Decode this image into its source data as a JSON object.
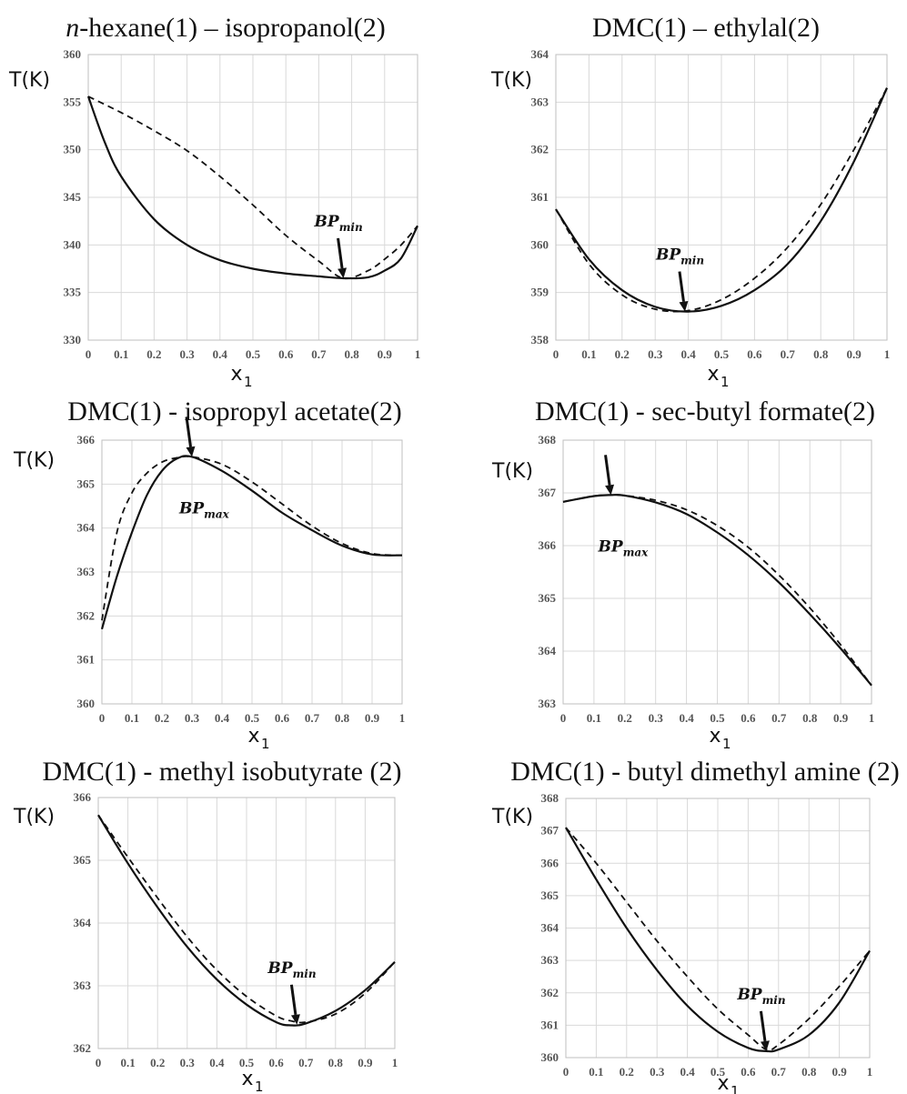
{
  "chart_data": [
    {
      "type": "line",
      "title": "n-hexane(1) – isopropanol(2)",
      "title_parts": [
        "n",
        "-hexane(1) – isopropanol(2)"
      ],
      "ylabel": "T(K)",
      "xlabel": "x",
      "xlabel_sub": "1",
      "xlim": [
        0,
        1
      ],
      "ylim": [
        330,
        360
      ],
      "xticks": [
        "0",
        "0.1",
        "0.2",
        "0.3",
        "0.4",
        "0.5",
        "0.6",
        "0.7",
        "0.8",
        "0.9",
        "1"
      ],
      "yticks": [
        "330",
        "335",
        "340",
        "345",
        "350",
        "355",
        "360"
      ],
      "grid": true,
      "annotation": {
        "text": "BP",
        "sub": "min",
        "x": 0.775,
        "y": 336.5
      },
      "series": [
        {
          "style": "solid",
          "x": [
            0,
            0.05,
            0.1,
            0.2,
            0.3,
            0.4,
            0.5,
            0.6,
            0.7,
            0.775,
            0.85,
            0.9,
            0.95,
            1
          ],
          "y": [
            355.6,
            350.8,
            347.2,
            342.7,
            340.0,
            338.4,
            337.5,
            337.0,
            336.7,
            336.5,
            336.6,
            337.3,
            338.6,
            342.0
          ]
        },
        {
          "style": "dashed",
          "x": [
            0,
            0.1,
            0.2,
            0.3,
            0.4,
            0.5,
            0.6,
            0.7,
            0.775,
            0.85,
            0.9,
            0.95,
            1
          ],
          "y": [
            355.6,
            353.9,
            352.0,
            349.9,
            347.2,
            344.2,
            341.0,
            338.3,
            336.5,
            337.3,
            338.5,
            340.0,
            342.0
          ]
        }
      ]
    },
    {
      "type": "line",
      "title": "DMC(1) – ethylal(2)",
      "ylabel": "T(K)",
      "xlabel": "x",
      "xlabel_sub": "1",
      "xlim": [
        0,
        1
      ],
      "ylim": [
        358,
        364
      ],
      "xticks": [
        "0",
        "0.1",
        "0.2",
        "0.3",
        "0.4",
        "0.5",
        "0.6",
        "0.7",
        "0.8",
        "0.9",
        "1"
      ],
      "yticks": [
        "358",
        "359",
        "360",
        "361",
        "362",
        "363",
        "364"
      ],
      "grid": true,
      "annotation": {
        "text": "BP",
        "sub": "min",
        "x": 0.39,
        "y": 358.6
      },
      "series": [
        {
          "style": "solid",
          "x": [
            0,
            0.1,
            0.2,
            0.3,
            0.4,
            0.5,
            0.6,
            0.7,
            0.8,
            0.9,
            1
          ],
          "y": [
            360.75,
            359.7,
            359.05,
            358.7,
            358.6,
            358.72,
            359.05,
            359.6,
            360.5,
            361.75,
            363.3
          ]
        },
        {
          "style": "dashed",
          "x": [
            0,
            0.1,
            0.2,
            0.3,
            0.4,
            0.5,
            0.6,
            0.7,
            0.8,
            0.9,
            1
          ],
          "y": [
            360.75,
            359.6,
            358.95,
            358.65,
            358.62,
            358.85,
            359.3,
            359.95,
            360.85,
            362.0,
            363.3
          ]
        }
      ]
    },
    {
      "type": "line",
      "title": "DMC(1) - isopropyl acetate(2)",
      "ylabel": "T(K)",
      "xlabel": "x",
      "xlabel_sub": "1",
      "xlim": [
        0,
        1
      ],
      "ylim": [
        360,
        366
      ],
      "xticks": [
        "0",
        "0.1",
        "0.2",
        "0.3",
        "0.4",
        "0.5",
        "0.6",
        "0.7",
        "0.8",
        "0.9",
        "1"
      ],
      "yticks": [
        "360",
        "361",
        "362",
        "363",
        "364",
        "365",
        "366"
      ],
      "grid": true,
      "annotation": {
        "text": "BP",
        "sub": "max",
        "x": 0.3,
        "y": 365.62
      },
      "series": [
        {
          "style": "solid",
          "x": [
            0,
            0.05,
            0.1,
            0.15,
            0.2,
            0.25,
            0.3,
            0.4,
            0.5,
            0.6,
            0.7,
            0.8,
            0.9,
            1
          ],
          "y": [
            361.7,
            362.9,
            363.9,
            364.75,
            365.3,
            365.58,
            365.62,
            365.3,
            364.85,
            364.35,
            363.95,
            363.6,
            363.4,
            363.38
          ]
        },
        {
          "style": "dashed",
          "x": [
            0,
            0.05,
            0.1,
            0.15,
            0.2,
            0.25,
            0.3,
            0.4,
            0.5,
            0.6,
            0.7,
            0.8,
            0.9,
            1
          ],
          "y": [
            361.9,
            363.9,
            364.8,
            365.25,
            365.5,
            365.6,
            365.62,
            365.45,
            365.05,
            364.55,
            364.05,
            363.65,
            363.42,
            363.38
          ]
        }
      ]
    },
    {
      "type": "line",
      "title": "DMC(1) -  sec-butyl formate(2)",
      "ylabel": "T(K)",
      "xlabel": "x",
      "xlabel_sub": "1",
      "xlim": [
        0,
        1
      ],
      "ylim": [
        363,
        368
      ],
      "xticks": [
        "0",
        "0.1",
        "0.2",
        "0.3",
        "0.4",
        "0.5",
        "0.6",
        "0.7",
        "0.8",
        "0.9",
        "1"
      ],
      "yticks": [
        "363",
        "364",
        "365",
        "366",
        "367",
        "368"
      ],
      "grid": true,
      "annotation": {
        "text": "BP",
        "sub": "max",
        "x": 0.155,
        "y": 366.96
      },
      "series": [
        {
          "style": "solid",
          "x": [
            0,
            0.1,
            0.155,
            0.2,
            0.3,
            0.4,
            0.5,
            0.6,
            0.7,
            0.8,
            0.9,
            1
          ],
          "y": [
            366.83,
            366.94,
            366.96,
            366.95,
            366.82,
            366.6,
            366.25,
            365.82,
            365.3,
            364.7,
            364.05,
            363.35
          ]
        },
        {
          "style": "dashed",
          "x": [
            0,
            0.1,
            0.155,
            0.2,
            0.3,
            0.4,
            0.5,
            0.6,
            0.7,
            0.8,
            0.9,
            1
          ],
          "y": [
            366.83,
            366.94,
            366.96,
            366.95,
            366.86,
            366.68,
            366.38,
            365.97,
            365.44,
            364.82,
            364.12,
            363.35
          ]
        }
      ]
    },
    {
      "type": "line",
      "title": "DMC(1) -  methyl isobutyrate (2)",
      "ylabel": "T(K)",
      "xlabel": "x",
      "xlabel_sub": "1",
      "xlim": [
        0,
        1
      ],
      "ylim": [
        362,
        366
      ],
      "xticks": [
        "0",
        "0.1",
        "0.2",
        "0.3",
        "0.4",
        "0.5",
        "0.6",
        "0.7",
        "0.8",
        "0.9",
        "1"
      ],
      "yticks": [
        "362",
        "363",
        "364",
        "365",
        "366"
      ],
      "grid": true,
      "annotation": {
        "text": "BP",
        "sub": "min",
        "x": 0.67,
        "y": 362.38
      },
      "series": [
        {
          "style": "solid",
          "x": [
            0,
            0.1,
            0.2,
            0.3,
            0.4,
            0.5,
            0.6,
            0.65,
            0.7,
            0.8,
            0.9,
            1
          ],
          "y": [
            365.72,
            364.95,
            364.25,
            363.62,
            363.1,
            362.7,
            362.42,
            362.37,
            362.4,
            362.6,
            362.93,
            363.38
          ]
        },
        {
          "style": "dashed",
          "x": [
            0,
            0.1,
            0.2,
            0.3,
            0.4,
            0.5,
            0.6,
            0.65,
            0.7,
            0.8,
            0.9,
            1
          ],
          "y": [
            365.72,
            365.05,
            364.4,
            363.78,
            363.25,
            362.83,
            362.52,
            362.44,
            362.42,
            362.55,
            362.88,
            363.38
          ]
        }
      ]
    },
    {
      "type": "line",
      "title": "DMC(1) -  butyl dimethyl amine (2)",
      "ylabel": "T(K)",
      "xlabel": "x",
      "xlabel_sub": "1",
      "xlim": [
        0,
        1
      ],
      "ylim": [
        360,
        368
      ],
      "xticks": [
        "0",
        "0.1",
        "0.2",
        "0.3",
        "0.4",
        "0.5",
        "0.6",
        "0.7",
        "0.8",
        "0.9",
        "1"
      ],
      "yticks": [
        "360",
        "361",
        "362",
        "363",
        "364",
        "365",
        "366",
        "367",
        "368"
      ],
      "grid": true,
      "annotation": {
        "text": "BP",
        "sub": "min",
        "x": 0.66,
        "y": 360.2
      },
      "series": [
        {
          "style": "solid",
          "x": [
            0,
            0.1,
            0.2,
            0.3,
            0.4,
            0.5,
            0.6,
            0.66,
            0.7,
            0.8,
            0.9,
            1
          ],
          "y": [
            367.1,
            365.5,
            364.0,
            362.7,
            361.6,
            360.8,
            360.3,
            360.2,
            360.25,
            360.7,
            361.7,
            363.3
          ]
        },
        {
          "style": "dashed",
          "x": [
            0,
            0.1,
            0.2,
            0.3,
            0.4,
            0.5,
            0.6,
            0.66,
            0.7,
            0.8,
            0.9,
            1
          ],
          "y": [
            367.1,
            366.0,
            364.8,
            363.6,
            362.5,
            361.5,
            360.7,
            360.25,
            360.4,
            361.2,
            362.2,
            363.3
          ]
        }
      ]
    }
  ]
}
